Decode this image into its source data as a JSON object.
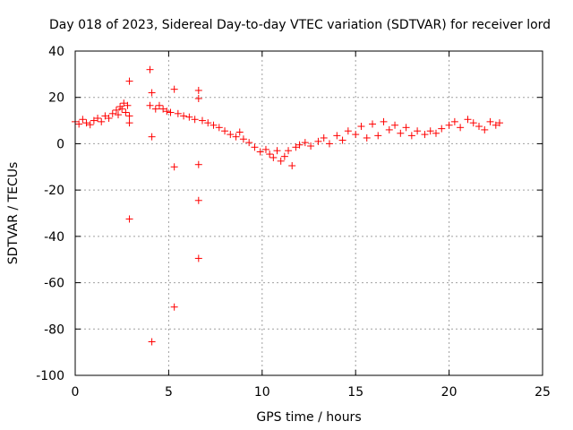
{
  "chart_data": {
    "type": "scatter",
    "title": "Day 018 of 2023, Sidereal Day-to-day VTEC variation (SDTVAR) for receiver lord",
    "xlabel": "GPS time / hours",
    "ylabel": "SDTVAR / TECUs",
    "xlim": [
      0,
      25
    ],
    "ylim": [
      -100,
      40
    ],
    "xticks": [
      "0",
      "5",
      "10",
      "15",
      "20",
      "25"
    ],
    "yticks": [
      "40",
      "20",
      "0",
      "-20",
      "-40",
      "-60",
      "-80",
      "-100"
    ],
    "xtick_values": [
      0,
      5,
      10,
      15,
      20,
      25
    ],
    "ytick_values": [
      40,
      20,
      0,
      -20,
      -40,
      -60,
      -80,
      -100
    ],
    "grid": true,
    "marker": "+",
    "color": "#ff0000",
    "series": [
      {
        "name": "SDTVAR",
        "points": [
          [
            0.0,
            9.5
          ],
          [
            0.2,
            8.5
          ],
          [
            0.4,
            10.5
          ],
          [
            0.6,
            9.0
          ],
          [
            0.8,
            8.2
          ],
          [
            1.0,
            10.0
          ],
          [
            1.2,
            11.0
          ],
          [
            1.4,
            9.5
          ],
          [
            1.6,
            12.0
          ],
          [
            1.8,
            11.0
          ],
          [
            2.0,
            13.0
          ],
          [
            2.2,
            14.5
          ],
          [
            2.3,
            12.5
          ],
          [
            2.4,
            16.0
          ],
          [
            2.5,
            15.0
          ],
          [
            2.6,
            17.5
          ],
          [
            2.7,
            13.5
          ],
          [
            2.8,
            16.5
          ],
          [
            2.9,
            27.0
          ],
          [
            2.9,
            12.0
          ],
          [
            2.9,
            9.0
          ],
          [
            2.9,
            -32.5
          ],
          [
            4.0,
            32.0
          ],
          [
            4.1,
            22.0
          ],
          [
            4.1,
            3.0
          ],
          [
            4.1,
            -85.5
          ],
          [
            4.0,
            16.5
          ],
          [
            4.3,
            15.0
          ],
          [
            4.5,
            16.5
          ],
          [
            4.7,
            15.0
          ],
          [
            4.9,
            14.0
          ],
          [
            5.1,
            13.5
          ],
          [
            5.3,
            23.5
          ],
          [
            5.3,
            -10.0
          ],
          [
            5.3,
            -70.5
          ],
          [
            5.5,
            13.0
          ],
          [
            5.8,
            12.0
          ],
          [
            6.1,
            11.5
          ],
          [
            6.4,
            10.5
          ],
          [
            6.6,
            23.0
          ],
          [
            6.6,
            19.5
          ],
          [
            6.6,
            -9.0
          ],
          [
            6.6,
            -24.5
          ],
          [
            6.6,
            -49.5
          ],
          [
            6.8,
            10.0
          ],
          [
            7.1,
            9.0
          ],
          [
            7.4,
            8.0
          ],
          [
            7.7,
            7.0
          ],
          [
            8.0,
            5.5
          ],
          [
            8.3,
            4.0
          ],
          [
            8.6,
            3.0
          ],
          [
            8.8,
            5.0
          ],
          [
            9.0,
            2.0
          ],
          [
            9.3,
            0.5
          ],
          [
            9.6,
            -1.5
          ],
          [
            9.9,
            -3.5
          ],
          [
            10.2,
            -2.5
          ],
          [
            10.4,
            -4.5
          ],
          [
            10.6,
            -6.0
          ],
          [
            10.8,
            -3.0
          ],
          [
            11.0,
            -7.5
          ],
          [
            11.2,
            -5.5
          ],
          [
            11.4,
            -3.0
          ],
          [
            11.6,
            -9.5
          ],
          [
            11.8,
            -1.5
          ],
          [
            12.0,
            -0.5
          ],
          [
            12.3,
            0.5
          ],
          [
            12.6,
            -1.0
          ],
          [
            13.0,
            1.0
          ],
          [
            13.3,
            2.5
          ],
          [
            13.6,
            0.0
          ],
          [
            14.0,
            3.5
          ],
          [
            14.3,
            1.5
          ],
          [
            14.6,
            5.5
          ],
          [
            15.0,
            4.0
          ],
          [
            15.3,
            7.5
          ],
          [
            15.6,
            2.5
          ],
          [
            15.9,
            8.5
          ],
          [
            16.2,
            3.5
          ],
          [
            16.5,
            9.5
          ],
          [
            16.8,
            6.0
          ],
          [
            17.1,
            8.0
          ],
          [
            17.4,
            4.5
          ],
          [
            17.7,
            7.0
          ],
          [
            18.0,
            3.5
          ],
          [
            18.3,
            5.5
          ],
          [
            18.7,
            4.0
          ],
          [
            19.0,
            5.5
          ],
          [
            19.3,
            4.5
          ],
          [
            19.6,
            6.5
          ],
          [
            20.0,
            8.0
          ],
          [
            20.3,
            9.5
          ],
          [
            20.6,
            7.0
          ],
          [
            21.0,
            10.5
          ],
          [
            21.3,
            9.0
          ],
          [
            21.6,
            7.5
          ],
          [
            21.9,
            6.0
          ],
          [
            22.2,
            9.5
          ],
          [
            22.5,
            8.0
          ],
          [
            22.7,
            9.0
          ]
        ]
      }
    ]
  }
}
